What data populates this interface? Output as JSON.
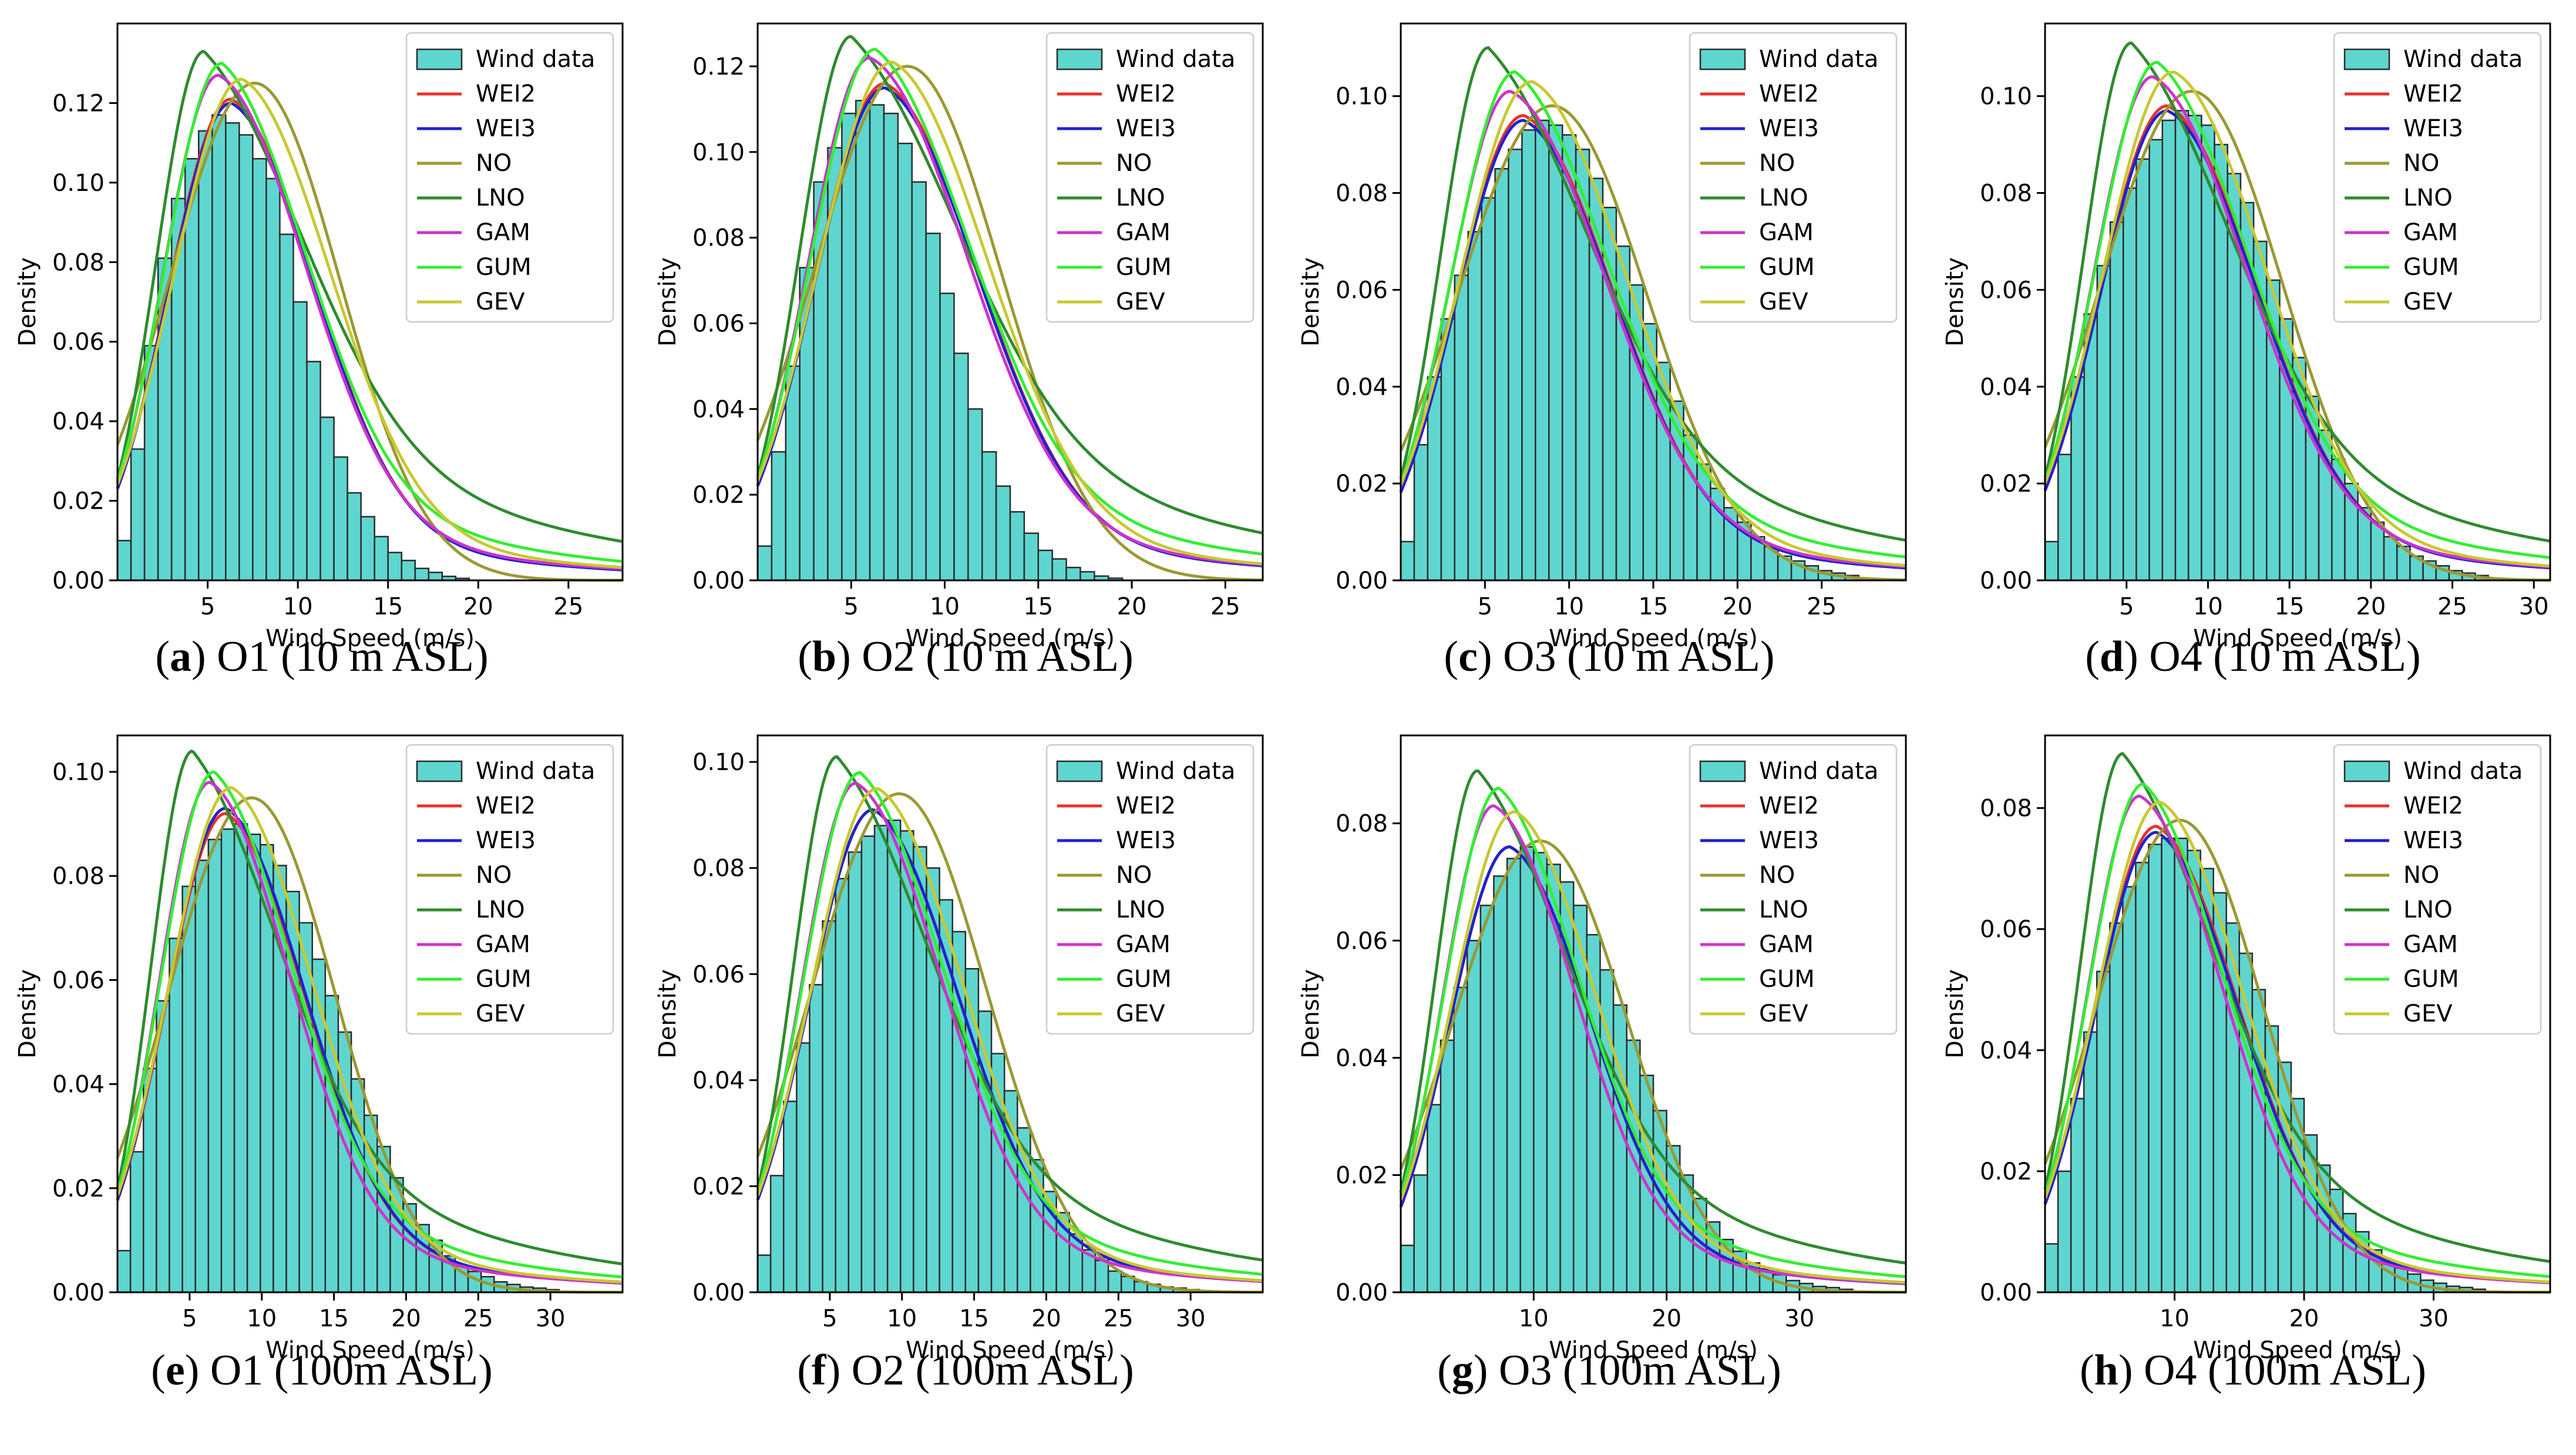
{
  "colors": {
    "bar_fill": "#5ED6CF",
    "bar_edge": "#2b2b2b",
    "WEI2": "#E8322B",
    "WEI3": "#2222CC",
    "NO": "#999933",
    "LNO": "#2E8B2E",
    "GAM": "#CC33CC",
    "GUM": "#33EE33",
    "GEV": "#C8C832"
  },
  "legend_entries": [
    "Wind data",
    "WEI2",
    "WEI3",
    "NO",
    "LNO",
    "GAM",
    "GUM",
    "GEV"
  ],
  "chart_data": [
    {
      "type": "bar",
      "caption": {
        "letter": "a",
        "text": "O1 (10 m ASL)"
      },
      "xlabel": "Wind Speed (m/s)",
      "ylabel": "Density",
      "xlim": [
        0,
        28
      ],
      "ylim": [
        0,
        0.14
      ],
      "xticks": [
        5,
        10,
        15,
        20,
        25
      ],
      "yticks": [
        0.0,
        0.02,
        0.04,
        0.06,
        0.08,
        0.1,
        0.12
      ],
      "legend": "top-right",
      "bin_width": 0.75,
      "bin_start": 0,
      "values": [
        0.01,
        0.033,
        0.059,
        0.081,
        0.096,
        0.106,
        0.113,
        0.117,
        0.115,
        0.112,
        0.106,
        0.101,
        0.087,
        0.07,
        0.055,
        0.041,
        0.031,
        0.022,
        0.016,
        0.011,
        0.007,
        0.005,
        0.003,
        0.002,
        0.001,
        0.0005
      ],
      "peaks": {
        "WEI2": [
          6.3,
          0.121
        ],
        "WEI3": [
          6.3,
          0.12
        ],
        "NO": [
          7.6,
          0.125
        ],
        "LNO": [
          4.8,
          0.133
        ],
        "GAM": [
          5.6,
          0.127
        ],
        "GUM": [
          5.8,
          0.13
        ],
        "GEV": [
          6.9,
          0.126
        ]
      }
    },
    {
      "type": "bar",
      "caption": {
        "letter": "b",
        "text": "O2 (10 m ASL)"
      },
      "xlabel": "Wind Speed (m/s)",
      "ylabel": "Density",
      "xlim": [
        0,
        27
      ],
      "ylim": [
        0,
        0.13
      ],
      "xticks": [
        5,
        10,
        15,
        20,
        25
      ],
      "yticks": [
        0.0,
        0.02,
        0.04,
        0.06,
        0.08,
        0.1,
        0.12
      ],
      "legend": "top-right",
      "bin_width": 0.75,
      "bin_start": 0,
      "values": [
        0.008,
        0.03,
        0.05,
        0.073,
        0.093,
        0.101,
        0.109,
        0.112,
        0.111,
        0.109,
        0.102,
        0.093,
        0.081,
        0.067,
        0.053,
        0.04,
        0.03,
        0.022,
        0.016,
        0.011,
        0.007,
        0.005,
        0.003,
        0.002,
        0.001,
        0.0005
      ],
      "peaks": {
        "WEI2": [
          6.8,
          0.116
        ],
        "WEI3": [
          6.8,
          0.115
        ],
        "NO": [
          8.0,
          0.12
        ],
        "LNO": [
          5.0,
          0.127
        ],
        "GAM": [
          6.0,
          0.122
        ],
        "GUM": [
          6.3,
          0.124
        ],
        "GEV": [
          7.2,
          0.121
        ]
      }
    },
    {
      "type": "bar",
      "caption": {
        "letter": "c",
        "text": "O3 (10 m ASL)"
      },
      "xlabel": "Wind Speed (m/s)",
      "ylabel": "Density",
      "xlim": [
        0,
        30
      ],
      "ylim": [
        0,
        0.115
      ],
      "xticks": [
        5,
        10,
        15,
        20,
        25
      ],
      "yticks": [
        0.0,
        0.02,
        0.04,
        0.06,
        0.08,
        0.1
      ],
      "legend": "top-right",
      "bin_width": 0.8,
      "bin_start": 0,
      "values": [
        0.008,
        0.028,
        0.042,
        0.054,
        0.063,
        0.072,
        0.079,
        0.085,
        0.089,
        0.093,
        0.095,
        0.094,
        0.092,
        0.089,
        0.083,
        0.077,
        0.069,
        0.061,
        0.053,
        0.045,
        0.037,
        0.03,
        0.024,
        0.019,
        0.015,
        0.012,
        0.009,
        0.007,
        0.005,
        0.004,
        0.003,
        0.002,
        0.0015,
        0.001
      ],
      "peaks": {
        "WEI2": [
          7.3,
          0.096
        ],
        "WEI3": [
          7.3,
          0.095
        ],
        "NO": [
          9.0,
          0.098
        ],
        "LNO": [
          5.2,
          0.11
        ],
        "GAM": [
          6.5,
          0.101
        ],
        "GUM": [
          6.8,
          0.105
        ],
        "GEV": [
          7.8,
          0.103
        ]
      }
    },
    {
      "type": "bar",
      "caption": {
        "letter": "d",
        "text": "O4 (10 m ASL)"
      },
      "xlabel": "Wind Speed (m/s)",
      "ylabel": "Density",
      "xlim": [
        0,
        31
      ],
      "ylim": [
        0,
        0.115
      ],
      "xticks": [
        5,
        10,
        15,
        20,
        25,
        30
      ],
      "yticks": [
        0.0,
        0.02,
        0.04,
        0.06,
        0.08,
        0.1
      ],
      "legend": "top-right",
      "bin_width": 0.8,
      "bin_start": 0,
      "values": [
        0.008,
        0.026,
        0.042,
        0.055,
        0.065,
        0.074,
        0.081,
        0.087,
        0.091,
        0.095,
        0.097,
        0.096,
        0.094,
        0.09,
        0.084,
        0.078,
        0.07,
        0.062,
        0.054,
        0.046,
        0.038,
        0.031,
        0.025,
        0.02,
        0.015,
        0.012,
        0.009,
        0.007,
        0.005,
        0.004,
        0.003,
        0.002,
        0.0015,
        0.001
      ],
      "peaks": {
        "WEI2": [
          7.5,
          0.098
        ],
        "WEI3": [
          7.5,
          0.097
        ],
        "NO": [
          9.0,
          0.101
        ],
        "LNO": [
          5.3,
          0.111
        ],
        "GAM": [
          6.6,
          0.104
        ],
        "GUM": [
          6.9,
          0.107
        ],
        "GEV": [
          7.9,
          0.105
        ]
      }
    },
    {
      "type": "bar",
      "caption": {
        "letter": "e",
        "text": "O1 (100m ASL)"
      },
      "xlabel": "Wind Speed (m/s)",
      "ylabel": "Density",
      "xlim": [
        0,
        35
      ],
      "ylim": [
        0,
        0.107
      ],
      "xticks": [
        5,
        10,
        15,
        20,
        25,
        30
      ],
      "yticks": [
        0.0,
        0.02,
        0.04,
        0.06,
        0.08,
        0.1
      ],
      "legend": "top-right",
      "bin_width": 0.9,
      "bin_start": 0,
      "values": [
        0.008,
        0.027,
        0.043,
        0.056,
        0.068,
        0.078,
        0.083,
        0.087,
        0.089,
        0.09,
        0.088,
        0.086,
        0.082,
        0.077,
        0.071,
        0.064,
        0.057,
        0.05,
        0.041,
        0.034,
        0.028,
        0.022,
        0.017,
        0.013,
        0.01,
        0.007,
        0.005,
        0.004,
        0.003,
        0.002,
        0.0015,
        0.001,
        0.0008,
        0.0005
      ],
      "peaks": {
        "WEI2": [
          7.5,
          0.092
        ],
        "WEI3": [
          7.5,
          0.093
        ],
        "NO": [
          9.3,
          0.095
        ],
        "LNO": [
          5.2,
          0.104
        ],
        "GAM": [
          6.4,
          0.098
        ],
        "GUM": [
          6.7,
          0.1
        ],
        "GEV": [
          7.9,
          0.097
        ]
      }
    },
    {
      "type": "bar",
      "caption": {
        "letter": "f",
        "text": "O2 (100m ASL)"
      },
      "xlabel": "Wind Speed (m/s)",
      "ylabel": "Density",
      "xlim": [
        0,
        35
      ],
      "ylim": [
        0,
        0.105
      ],
      "xticks": [
        5,
        10,
        15,
        20,
        25,
        30
      ],
      "yticks": [
        0.0,
        0.02,
        0.04,
        0.06,
        0.08,
        0.1
      ],
      "legend": "top-right",
      "bin_width": 0.9,
      "bin_start": 0,
      "values": [
        0.007,
        0.022,
        0.036,
        0.047,
        0.058,
        0.07,
        0.078,
        0.083,
        0.086,
        0.088,
        0.089,
        0.087,
        0.084,
        0.08,
        0.074,
        0.068,
        0.061,
        0.053,
        0.045,
        0.038,
        0.031,
        0.025,
        0.019,
        0.015,
        0.011,
        0.008,
        0.006,
        0.004,
        0.003,
        0.002,
        0.0015,
        0.001,
        0.0008,
        0.0005
      ],
      "peaks": {
        "WEI2": [
          8.0,
          0.091
        ],
        "WEI3": [
          8.0,
          0.091
        ],
        "NO": [
          9.8,
          0.094
        ],
        "LNO": [
          5.5,
          0.101
        ],
        "GAM": [
          6.8,
          0.096
        ],
        "GUM": [
          7.1,
          0.098
        ],
        "GEV": [
          8.3,
          0.095
        ]
      }
    },
    {
      "type": "bar",
      "caption": {
        "letter": "g",
        "text": "O3 (100m ASL)"
      },
      "xlabel": "Wind Speed (m/s)",
      "ylabel": "Density",
      "xlim": [
        0,
        38
      ],
      "ylim": [
        0,
        0.095
      ],
      "xticks": [
        10,
        20,
        30
      ],
      "yticks": [
        0.0,
        0.02,
        0.04,
        0.06,
        0.08
      ],
      "legend": "top-right",
      "bin_width": 1.0,
      "bin_start": 0,
      "values": [
        0.008,
        0.02,
        0.032,
        0.043,
        0.052,
        0.06,
        0.066,
        0.071,
        0.074,
        0.076,
        0.075,
        0.073,
        0.07,
        0.066,
        0.061,
        0.055,
        0.049,
        0.043,
        0.037,
        0.031,
        0.025,
        0.02,
        0.016,
        0.012,
        0.009,
        0.007,
        0.005,
        0.004,
        0.003,
        0.002,
        0.0015,
        0.001,
        0.0008,
        0.0005
      ],
      "peaks": {
        "WEI2": [
          8.2,
          0.076
        ],
        "WEI3": [
          8.2,
          0.076
        ],
        "NO": [
          10.5,
          0.077
        ],
        "LNO": [
          5.8,
          0.089
        ],
        "GAM": [
          7.0,
          0.083
        ],
        "GUM": [
          7.4,
          0.086
        ],
        "GEV": [
          8.6,
          0.082
        ]
      }
    },
    {
      "type": "bar",
      "caption": {
        "letter": "h",
        "text": "O4 (100m ASL)"
      },
      "xlabel": "Wind Speed (m/s)",
      "ylabel": "Density",
      "xlim": [
        0,
        39
      ],
      "ylim": [
        0,
        0.092
      ],
      "xticks": [
        10,
        20,
        30
      ],
      "yticks": [
        0.0,
        0.02,
        0.04,
        0.06,
        0.08
      ],
      "legend": "top-right",
      "bin_width": 1.0,
      "bin_start": 0,
      "values": [
        0.008,
        0.02,
        0.032,
        0.043,
        0.053,
        0.061,
        0.067,
        0.071,
        0.074,
        0.075,
        0.075,
        0.073,
        0.07,
        0.066,
        0.061,
        0.056,
        0.05,
        0.044,
        0.038,
        0.032,
        0.026,
        0.021,
        0.017,
        0.013,
        0.01,
        0.007,
        0.005,
        0.004,
        0.003,
        0.002,
        0.0015,
        0.001,
        0.0008,
        0.0005
      ],
      "peaks": {
        "WEI2": [
          8.6,
          0.077
        ],
        "WEI3": [
          8.6,
          0.076
        ],
        "NO": [
          10.4,
          0.078
        ],
        "LNO": [
          6.0,
          0.089
        ],
        "GAM": [
          7.3,
          0.082
        ],
        "GUM": [
          7.6,
          0.084
        ],
        "GEV": [
          8.9,
          0.081
        ]
      }
    }
  ]
}
